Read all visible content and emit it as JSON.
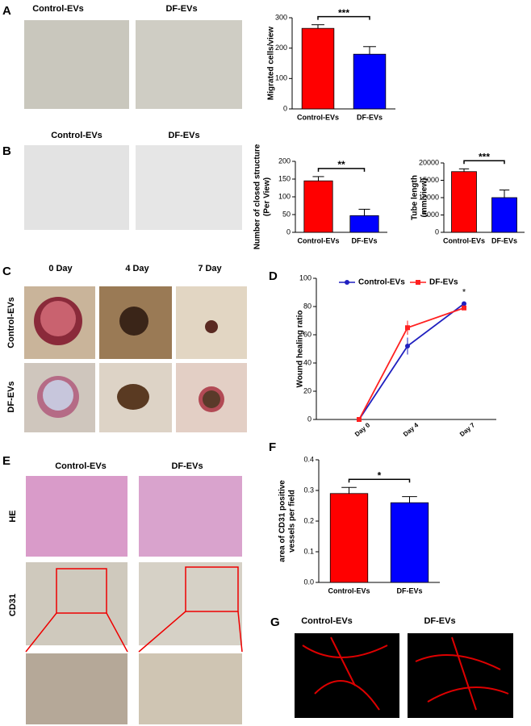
{
  "labels": {
    "panels": [
      "A",
      "B",
      "C",
      "D",
      "E",
      "F",
      "G"
    ],
    "a_captions": [
      "Control-EVs",
      "DF-EVs"
    ],
    "b_captions": [
      "Control-EVs",
      "DF-EVs"
    ],
    "c_captions": [
      "0 Day",
      "4 Day",
      "7 Day"
    ],
    "c_rows": [
      "Control-EVs",
      "DF-EVs"
    ],
    "e_captions": [
      "Control-EVs",
      "DF-EVs"
    ],
    "e_rows": [
      "HE",
      "CD31"
    ],
    "g_captions": [
      "Control-EVs",
      "DF-EVs"
    ]
  },
  "chart_data": [
    {
      "type": "bar",
      "ylabel": [
        "Migrated cells/view"
      ],
      "categories": [
        "Control-EVs",
        "DF-EVs"
      ],
      "values": [
        265,
        180
      ],
      "errors": [
        12,
        25
      ],
      "colors": [
        "#ff0000",
        "#0000ff"
      ],
      "ylim": [
        0,
        300
      ],
      "yticks": [
        0,
        100,
        200,
        300
      ],
      "annotation": "***"
    },
    {
      "type": "bar",
      "ylabel": [
        "Number of closed structure",
        "(Per View)"
      ],
      "categories": [
        "Control-EVs",
        "DF-EVs"
      ],
      "values": [
        145,
        47
      ],
      "errors": [
        12,
        18
      ],
      "colors": [
        "#ff0000",
        "#0000ff"
      ],
      "ylim": [
        0,
        200
      ],
      "yticks": [
        0,
        50,
        100,
        150,
        200
      ],
      "annotation": "**"
    },
    {
      "type": "bar",
      "ylabel": [
        "Tube length",
        "(mm/view)"
      ],
      "categories": [
        "Control-EVs",
        "DF-EVs"
      ],
      "values": [
        17500,
        10000
      ],
      "errors": [
        800,
        2200
      ],
      "colors": [
        "#ff0000",
        "#0000ff"
      ],
      "ylim": [
        0,
        20000
      ],
      "yticks": [
        0,
        5000,
        10000,
        15000,
        20000
      ],
      "annotation": "***"
    },
    {
      "type": "line",
      "ylabel": [
        "Wound healing ratio"
      ],
      "categories": [
        "Day 0",
        "Day 4",
        "Day 7"
      ],
      "series": [
        {
          "name": "Control-EVs",
          "color": "#1f1fbf",
          "values": [
            0,
            52,
            82
          ],
          "errors": [
            0,
            6,
            1.5
          ]
        },
        {
          "name": "DF-EVs",
          "color": "#ff2020",
          "values": [
            0,
            65,
            79
          ],
          "errors": [
            0,
            5,
            1.5
          ]
        }
      ],
      "ylim": [
        0,
        100
      ],
      "yticks": [
        0,
        20,
        40,
        60,
        80,
        100
      ],
      "annotation": "*"
    },
    {
      "type": "bar",
      "ylabel": [
        "area of CD31 positive",
        "vessels per field"
      ],
      "categories": [
        "Control-EVs",
        "DF-EVs"
      ],
      "values": [
        0.29,
        0.26
      ],
      "errors": [
        0.02,
        0.02
      ],
      "colors": [
        "#ff0000",
        "#0000ff"
      ],
      "ylim": [
        0,
        0.4
      ],
      "yticks": [
        {
          "value": 0,
          "label": "0.0"
        },
        0.1,
        0.2,
        0.3,
        0.4
      ],
      "annotation": "*"
    }
  ]
}
